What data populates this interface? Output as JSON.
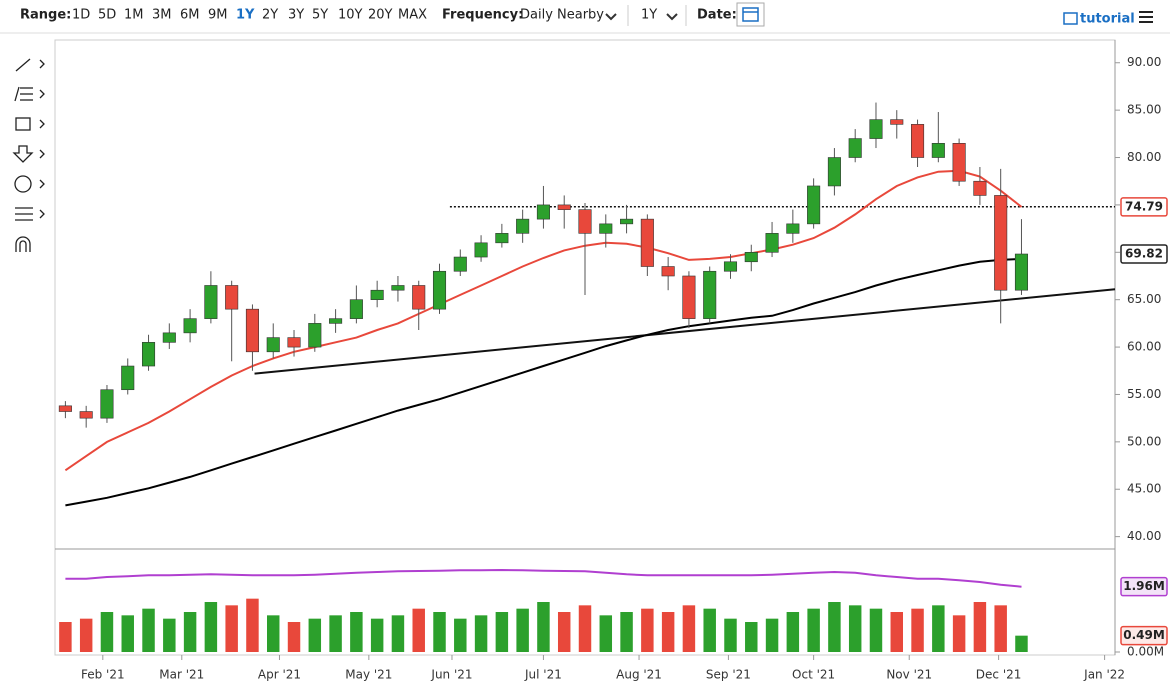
{
  "toolbar": {
    "range_label": "Range:",
    "ranges": [
      "1D",
      "5D",
      "1M",
      "3M",
      "6M",
      "9M",
      "1Y",
      "2Y",
      "3Y",
      "5Y",
      "10Y",
      "20Y",
      "MAX"
    ],
    "active_range": "1Y",
    "frequency_label": "Frequency:",
    "frequency": "Daily Nearby",
    "period": "1Y",
    "date_label": "Date:",
    "tutorial": "tutorial"
  },
  "chart_data": {
    "type": "candlestick",
    "categories": [
      null,
      null,
      null,
      null,
      null,
      null,
      null,
      null,
      null,
      null,
      null,
      null,
      null,
      null,
      null,
      null,
      null,
      null,
      null,
      null,
      null,
      null,
      null,
      null,
      null,
      null,
      null,
      null,
      null,
      null,
      null,
      null,
      null,
      null,
      null,
      null,
      null,
      null,
      null,
      null,
      null,
      null,
      null,
      null,
      null,
      null,
      null
    ],
    "xlim": [
      -0.5,
      50.5
    ],
    "xticks": [
      {
        "value": 1.8,
        "label": "Feb '21"
      },
      {
        "value": 5.6,
        "label": "Mar '21"
      },
      {
        "value": 10.3,
        "label": "Apr '21"
      },
      {
        "value": 14.6,
        "label": "May '21"
      },
      {
        "value": 18.6,
        "label": "Jun '21"
      },
      {
        "value": 23.0,
        "label": "Jul '21"
      },
      {
        "value": 27.6,
        "label": "Aug '21"
      },
      {
        "value": 31.9,
        "label": "Sep '21"
      },
      {
        "value": 36.0,
        "label": "Oct '21"
      },
      {
        "value": 40.6,
        "label": "Nov '21"
      },
      {
        "value": 44.9,
        "label": "Dec '21"
      },
      {
        "value": 50.0,
        "label": "Jan '22"
      }
    ],
    "ylim": [
      38.8,
      92.4
    ],
    "yticks": [
      {
        "value": 40,
        "label": "40.00"
      },
      {
        "value": 45,
        "label": "45.00"
      },
      {
        "value": 50,
        "label": "50.00"
      },
      {
        "value": 55,
        "label": "55.00"
      },
      {
        "value": 60,
        "label": "60.00"
      },
      {
        "value": 65,
        "label": "65.00"
      },
      {
        "value": 70,
        "label": "70.00"
      },
      {
        "value": 75,
        "label": "75.00"
      },
      {
        "value": 80,
        "label": "80.00"
      },
      {
        "value": 85,
        "label": "85.00"
      },
      {
        "value": 90,
        "label": "90.00"
      }
    ],
    "up_color": "#2ca02c",
    "down_color": "#e8483b",
    "candles": {
      "open": [
        53.8,
        53.2,
        52.5,
        55.5,
        58,
        60.5,
        61.5,
        63,
        66.5,
        64,
        59.5,
        61,
        60,
        62.5,
        63,
        65,
        66,
        66.5,
        64,
        68,
        69.5,
        71,
        72,
        73.5,
        75,
        74.5,
        72,
        73,
        73.5,
        68.5,
        67.5,
        63,
        68,
        69,
        70,
        72,
        73,
        77,
        80,
        82,
        84,
        83.5,
        80,
        81.5,
        77.5,
        76,
        66
      ],
      "high": [
        54.3,
        53.8,
        56,
        58.8,
        61.3,
        62.5,
        64,
        68,
        67,
        64.5,
        62.5,
        61.8,
        63.5,
        64,
        66.5,
        67,
        67.5,
        67,
        68.8,
        70.3,
        71.8,
        73,
        74.5,
        77,
        76,
        75.2,
        74,
        75,
        74,
        69.5,
        68,
        68.5,
        69.8,
        70.8,
        73.2,
        74.5,
        77.8,
        81,
        83,
        85.8,
        85,
        84,
        84.8,
        82,
        79,
        78.8,
        73.5
      ],
      "low": [
        52.5,
        51.5,
        52,
        55,
        57.5,
        59.8,
        60.5,
        62.5,
        58.5,
        57.5,
        58.8,
        59,
        59.5,
        61.5,
        62.5,
        64.2,
        64.8,
        61.8,
        63.5,
        67.5,
        69,
        70.5,
        71,
        72.5,
        72.5,
        65.5,
        70.5,
        72,
        67.5,
        66,
        62,
        62.5,
        67.2,
        68,
        69.5,
        71,
        72.5,
        76,
        79.5,
        81,
        82,
        79,
        79.5,
        77,
        75,
        62.5,
        65.5
      ],
      "close": [
        53.2,
        52.5,
        55.5,
        58,
        60.5,
        61.5,
        63,
        66.5,
        64,
        59.5,
        61,
        60,
        62.5,
        63,
        65,
        66,
        66.5,
        64,
        68,
        69.5,
        71,
        72,
        73.5,
        75,
        74.5,
        72,
        73,
        73.5,
        68.5,
        67.5,
        63,
        68,
        69,
        70,
        72,
        73,
        77,
        80,
        82,
        84,
        83.5,
        80,
        81.5,
        77.5,
        76,
        66,
        69.82
      ]
    },
    "moving_averages": [
      {
        "color": "#e8483b",
        "values": [
          47,
          48.5,
          50,
          51,
          52,
          53.2,
          54.5,
          55.8,
          57,
          58,
          58.8,
          59.5,
          60,
          60.5,
          61,
          61.8,
          62.5,
          63.5,
          64.5,
          65.5,
          66.5,
          67.5,
          68.5,
          69.4,
          70.2,
          70.7,
          71,
          70.9,
          70.5,
          69.9,
          69.2,
          69.3,
          69.5,
          69.9,
          70.3,
          70.8,
          71.5,
          72.6,
          74,
          75.6,
          77,
          77.9,
          78.5,
          78.6,
          78,
          76.5,
          74.79
        ]
      },
      {
        "color": "#000000",
        "values": [
          43.3,
          43.7,
          44.1,
          44.6,
          45.1,
          45.7,
          46.3,
          47,
          47.7,
          48.4,
          49.1,
          49.8,
          50.5,
          51.2,
          51.9,
          52.6,
          53.3,
          53.9,
          54.5,
          55.2,
          55.9,
          56.6,
          57.3,
          58,
          58.7,
          59.4,
          60.1,
          60.7,
          61.3,
          61.8,
          62.2,
          62.5,
          62.8,
          63.1,
          63.3,
          63.9,
          64.6,
          65.2,
          65.8,
          66.5,
          67.1,
          67.6,
          68.1,
          68.6,
          69,
          69.2,
          69.3
        ]
      }
    ],
    "lines": [
      {
        "style": "dotted",
        "x": [
          18.5,
          50.5
        ],
        "y": [
          74.8,
          74.8
        ]
      },
      {
        "style": "solid",
        "x": [
          9.1,
          50.5
        ],
        "y": [
          57.2,
          66.1
        ]
      }
    ],
    "volume": {
      "ylim": [
        0,
        3.06
      ],
      "yticks": [
        {
          "value": 0,
          "label": "0.00M"
        }
      ],
      "values": [
        0.9,
        1.0,
        1.2,
        1.1,
        1.3,
        1.0,
        1.2,
        1.5,
        1.4,
        1.6,
        1.1,
        0.9,
        1.0,
        1.1,
        1.2,
        1.0,
        1.1,
        1.3,
        1.2,
        1.0,
        1.1,
        1.2,
        1.3,
        1.5,
        1.2,
        1.4,
        1.1,
        1.2,
        1.3,
        1.2,
        1.4,
        1.3,
        1.0,
        0.9,
        1.0,
        1.2,
        1.3,
        1.5,
        1.4,
        1.3,
        1.2,
        1.3,
        1.4,
        1.1,
        1.5,
        1.4,
        0.49
      ],
      "value_labels": [
        null,
        null,
        null,
        null,
        null,
        null,
        null,
        null,
        null,
        null,
        null,
        null,
        null,
        null,
        null,
        null,
        null,
        null,
        null,
        null,
        null,
        null,
        null,
        null,
        null,
        null,
        null,
        null,
        null,
        null,
        null,
        null,
        null,
        null,
        null,
        null,
        null,
        null,
        null,
        null,
        null,
        null,
        null,
        null,
        null,
        null,
        "0.49M"
      ],
      "average": {
        "color": "#b03fd0",
        "values": [
          2.2,
          2.2,
          2.25,
          2.27,
          2.3,
          2.3,
          2.32,
          2.33,
          2.32,
          2.3,
          2.3,
          2.3,
          2.32,
          2.35,
          2.38,
          2.4,
          2.42,
          2.43,
          2.44,
          2.45,
          2.45,
          2.46,
          2.45,
          2.44,
          2.43,
          2.42,
          2.38,
          2.33,
          2.3,
          2.3,
          2.3,
          2.3,
          2.3,
          2.3,
          2.32,
          2.35,
          2.38,
          2.4,
          2.38,
          2.3,
          2.25,
          2.2,
          2.2,
          2.15,
          2.1,
          2.02,
          1.96
        ],
        "value_labels": [
          null,
          null,
          null,
          null,
          null,
          null,
          null,
          null,
          null,
          null,
          null,
          null,
          null,
          null,
          null,
          null,
          null,
          null,
          null,
          null,
          null,
          null,
          null,
          null,
          null,
          null,
          null,
          null,
          null,
          null,
          null,
          null,
          null,
          null,
          null,
          null,
          null,
          null,
          null,
          null,
          null,
          null,
          null,
          null,
          null,
          null,
          "1.96M"
        ]
      }
    }
  }
}
